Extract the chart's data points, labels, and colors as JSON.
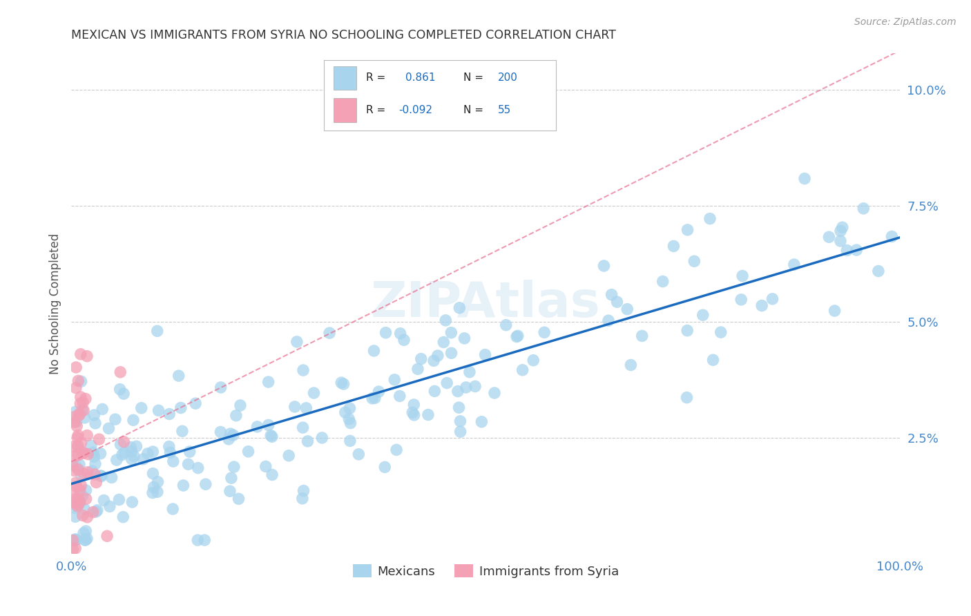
{
  "title": "MEXICAN VS IMMIGRANTS FROM SYRIA NO SCHOOLING COMPLETED CORRELATION CHART",
  "source": "Source: ZipAtlas.com",
  "ylabel": "No Schooling Completed",
  "xlim": [
    0,
    100
  ],
  "ylim": [
    0,
    10.8
  ],
  "xticks": [
    0,
    20,
    40,
    60,
    80,
    100
  ],
  "xticklabels": [
    "0.0%",
    "",
    "",
    "",
    "",
    "100.0%"
  ],
  "yticks": [
    2.5,
    5.0,
    7.5,
    10.0
  ],
  "yticklabels": [
    "2.5%",
    "5.0%",
    "7.5%",
    "10.0%"
  ],
  "blue_R": 0.861,
  "blue_N": 200,
  "pink_R": -0.092,
  "pink_N": 55,
  "blue_color": "#a8d4ee",
  "pink_color": "#f4a0b5",
  "blue_line_color": "#1a6bbf",
  "pink_line_color": "#e87090",
  "watermark": "ZIPAtlas",
  "legend_label_blue": "Mexicans",
  "legend_label_pink": "Immigrants from Syria",
  "background_color": "#ffffff",
  "grid_color": "#cccccc",
  "title_color": "#333333",
  "axis_label_color": "#555555",
  "tick_color": "#4488cc",
  "blue_scatter_seed": 42,
  "pink_scatter_seed": 123
}
